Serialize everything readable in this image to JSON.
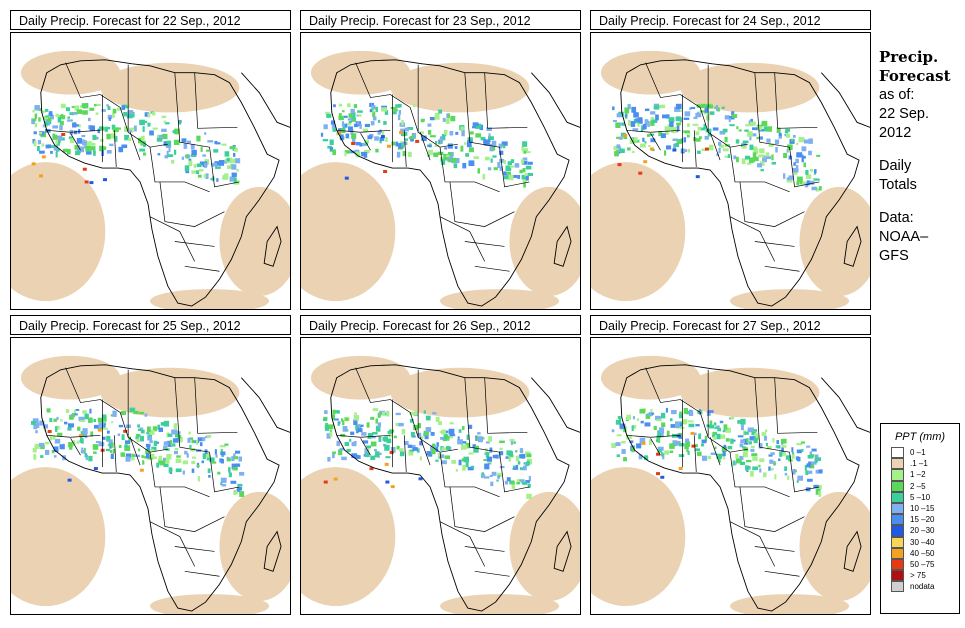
{
  "panels": [
    {
      "title": "Daily Precip. Forecast for  22 Sep., 2012"
    },
    {
      "title": "Daily Precip. Forecast for  23 Sep., 2012"
    },
    {
      "title": "Daily Precip. Forecast for  24 Sep., 2012"
    },
    {
      "title": "Daily Precip. Forecast for  25 Sep., 2012"
    },
    {
      "title": "Daily Precip. Forecast for  26 Sep., 2012"
    },
    {
      "title": "Daily Precip. Forecast for  27 Sep., 2012"
    }
  ],
  "side": {
    "title_line1": "Precip.",
    "title_line2": "Forecast",
    "asof_line1": "as of:",
    "asof_line2": "22 Sep.",
    "asof_line3": "2012",
    "daily_line1": "Daily",
    "daily_line2": "Totals",
    "data_line1": "Data:",
    "data_line2": "NOAA–",
    "data_line3": "GFS"
  },
  "legend": {
    "title": "PPT (mm)",
    "items": [
      {
        "label": "0 –1",
        "color": "#ffffff"
      },
      {
        "label": ".1 –1",
        "color": "#ead2b2"
      },
      {
        "label": "1 –2",
        "color": "#a6f08c"
      },
      {
        "label": "2 –5",
        "color": "#5ad85a"
      },
      {
        "label": "5 –10",
        "color": "#3ccf9c"
      },
      {
        "label": "10 –15",
        "color": "#7fb0f0"
      },
      {
        "label": "15 –20",
        "color": "#4a8ef0"
      },
      {
        "label": "20 –30",
        "color": "#1f5ae0"
      },
      {
        "label": "30 –40",
        "color": "#f5d55a"
      },
      {
        "label": "40 –50",
        "color": "#f5a020"
      },
      {
        "label": "50 –75",
        "color": "#e63a14"
      },
      {
        "label": "> 75",
        "color": "#b01010"
      },
      {
        "label": "nodata",
        "color": "#cfcfcf"
      }
    ]
  }
}
